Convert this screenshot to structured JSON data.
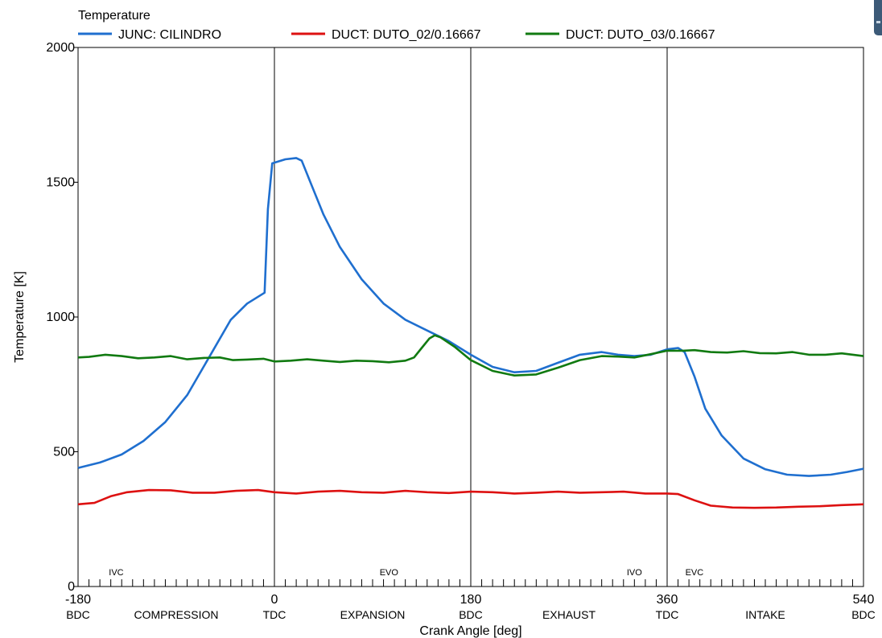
{
  "chart_data": {
    "type": "line",
    "title": "Temperature",
    "xlabel": "Crank Angle  [deg]",
    "ylabel": "Temperature  [K]",
    "xlim": [
      -180,
      540
    ],
    "ylim": [
      0,
      2000
    ],
    "y_ticks": [
      "0",
      "500",
      "1000",
      "1500",
      "2000"
    ],
    "x_ticks": [
      {
        "value": -180,
        "label": "-180",
        "sublabel": "BDC"
      },
      {
        "value": 0,
        "label": "0",
        "sublabel": "TDC"
      },
      {
        "value": 180,
        "label": "180",
        "sublabel": "BDC"
      },
      {
        "value": 360,
        "label": "360",
        "sublabel": "TDC"
      },
      {
        "value": 540,
        "label": "540",
        "sublabel": "BDC"
      }
    ],
    "strokes": [
      {
        "center": -90,
        "label": "COMPRESSION"
      },
      {
        "center": 90,
        "label": "EXPANSION"
      },
      {
        "center": 270,
        "label": "EXHAUST"
      },
      {
        "center": 450,
        "label": "INTAKE"
      }
    ],
    "valve_events": [
      {
        "x": -145,
        "label": "IVC"
      },
      {
        "x": 105,
        "label": "EVO"
      },
      {
        "x": 330,
        "label": "IVO"
      },
      {
        "x": 385,
        "label": "EVC"
      }
    ],
    "vertical_lines": [
      0,
      180,
      360
    ],
    "grid": false,
    "legend_position": "top",
    "series": [
      {
        "name": "JUNC: CILINDRO",
        "color": "#1f6fcf",
        "points": [
          [
            -180,
            440
          ],
          [
            -160,
            460
          ],
          [
            -140,
            490
          ],
          [
            -120,
            540
          ],
          [
            -100,
            610
          ],
          [
            -80,
            710
          ],
          [
            -60,
            850
          ],
          [
            -40,
            990
          ],
          [
            -25,
            1050
          ],
          [
            -9,
            1090
          ],
          [
            -6,
            1400
          ],
          [
            -2,
            1570
          ],
          [
            10,
            1585
          ],
          [
            20,
            1590
          ],
          [
            25,
            1580
          ],
          [
            35,
            1480
          ],
          [
            45,
            1380
          ],
          [
            60,
            1260
          ],
          [
            80,
            1140
          ],
          [
            100,
            1050
          ],
          [
            120,
            990
          ],
          [
            140,
            950
          ],
          [
            160,
            910
          ],
          [
            180,
            860
          ],
          [
            200,
            815
          ],
          [
            220,
            795
          ],
          [
            240,
            800
          ],
          [
            260,
            830
          ],
          [
            280,
            860
          ],
          [
            300,
            870
          ],
          [
            315,
            860
          ],
          [
            330,
            855
          ],
          [
            345,
            860
          ],
          [
            360,
            880
          ],
          [
            370,
            885
          ],
          [
            376,
            870
          ],
          [
            385,
            780
          ],
          [
            395,
            660
          ],
          [
            410,
            560
          ],
          [
            430,
            475
          ],
          [
            450,
            435
          ],
          [
            470,
            415
          ],
          [
            490,
            410
          ],
          [
            510,
            415
          ],
          [
            525,
            425
          ],
          [
            540,
            437
          ]
        ]
      },
      {
        "name": "DUCT: DUTO_02/0.16667",
        "color": "#dd1111",
        "points": [
          [
            -180,
            305
          ],
          [
            -165,
            310
          ],
          [
            -150,
            335
          ],
          [
            -135,
            350
          ],
          [
            -115,
            358
          ],
          [
            -95,
            357
          ],
          [
            -75,
            348
          ],
          [
            -55,
            348
          ],
          [
            -35,
            355
          ],
          [
            -15,
            358
          ],
          [
            0,
            350
          ],
          [
            20,
            345
          ],
          [
            40,
            352
          ],
          [
            60,
            355
          ],
          [
            80,
            350
          ],
          [
            100,
            348
          ],
          [
            120,
            355
          ],
          [
            140,
            350
          ],
          [
            160,
            347
          ],
          [
            180,
            352
          ],
          [
            200,
            350
          ],
          [
            220,
            345
          ],
          [
            240,
            348
          ],
          [
            260,
            352
          ],
          [
            280,
            348
          ],
          [
            300,
            350
          ],
          [
            320,
            352
          ],
          [
            340,
            345
          ],
          [
            360,
            345
          ],
          [
            370,
            343
          ],
          [
            385,
            320
          ],
          [
            400,
            300
          ],
          [
            420,
            293
          ],
          [
            440,
            292
          ],
          [
            460,
            293
          ],
          [
            480,
            296
          ],
          [
            500,
            298
          ],
          [
            520,
            302
          ],
          [
            540,
            305
          ]
        ]
      },
      {
        "name": "DUCT: DUTO_03/0.16667",
        "color": "#117a11",
        "points": [
          [
            -180,
            850
          ],
          [
            -170,
            852
          ],
          [
            -155,
            860
          ],
          [
            -140,
            855
          ],
          [
            -125,
            847
          ],
          [
            -110,
            850
          ],
          [
            -95,
            855
          ],
          [
            -80,
            843
          ],
          [
            -65,
            848
          ],
          [
            -50,
            850
          ],
          [
            -38,
            840
          ],
          [
            -25,
            842
          ],
          [
            -10,
            845
          ],
          [
            0,
            835
          ],
          [
            15,
            838
          ],
          [
            30,
            843
          ],
          [
            45,
            838
          ],
          [
            60,
            833
          ],
          [
            75,
            838
          ],
          [
            90,
            836
          ],
          [
            105,
            832
          ],
          [
            120,
            838
          ],
          [
            128,
            850
          ],
          [
            135,
            885
          ],
          [
            142,
            920
          ],
          [
            147,
            932
          ],
          [
            152,
            925
          ],
          [
            165,
            890
          ],
          [
            180,
            840
          ],
          [
            200,
            800
          ],
          [
            220,
            783
          ],
          [
            240,
            787
          ],
          [
            260,
            812
          ],
          [
            280,
            840
          ],
          [
            300,
            855
          ],
          [
            315,
            853
          ],
          [
            330,
            850
          ],
          [
            345,
            862
          ],
          [
            360,
            875
          ],
          [
            375,
            875
          ],
          [
            385,
            877
          ],
          [
            400,
            870
          ],
          [
            415,
            868
          ],
          [
            430,
            873
          ],
          [
            445,
            866
          ],
          [
            460,
            865
          ],
          [
            475,
            870
          ],
          [
            490,
            860
          ],
          [
            505,
            860
          ],
          [
            520,
            865
          ],
          [
            540,
            855
          ]
        ]
      }
    ]
  }
}
